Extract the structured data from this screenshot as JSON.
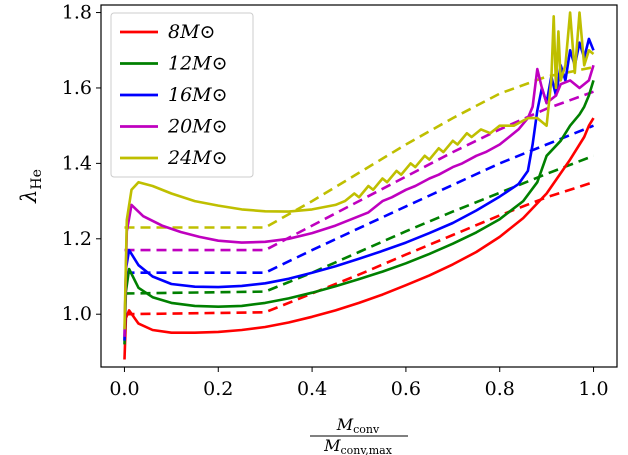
{
  "chart_data": {
    "type": "line",
    "xlabel_num": "M",
    "xlabel_num_sub": "conv",
    "xlabel_den": "M",
    "xlabel_den_sub": "conv,max",
    "ylabel": "λ",
    "ylabel_sub": "He",
    "xlim": [
      -0.05,
      1.05
    ],
    "ylim": [
      0.86,
      1.82
    ],
    "xticks": [
      "0.0",
      "0.2",
      "0.4",
      "0.6",
      "0.8",
      "1.0"
    ],
    "yticks": [
      "1.0",
      "1.2",
      "1.4",
      "1.6",
      "1.8"
    ],
    "legend_position": "upper-left",
    "series": [
      {
        "name": "8M⊙",
        "color": "#ff0000",
        "solid": [
          [
            0.0,
            0.88
          ],
          [
            0.003,
            0.99
          ],
          [
            0.01,
            1.01
          ],
          [
            0.03,
            0.975
          ],
          [
            0.06,
            0.958
          ],
          [
            0.1,
            0.951
          ],
          [
            0.15,
            0.951
          ],
          [
            0.2,
            0.953
          ],
          [
            0.25,
            0.958
          ],
          [
            0.3,
            0.966
          ],
          [
            0.35,
            0.978
          ],
          [
            0.4,
            0.993
          ],
          [
            0.45,
            1.01
          ],
          [
            0.5,
            1.03
          ],
          [
            0.55,
            1.052
          ],
          [
            0.6,
            1.077
          ],
          [
            0.65,
            1.103
          ],
          [
            0.7,
            1.132
          ],
          [
            0.75,
            1.165
          ],
          [
            0.8,
            1.205
          ],
          [
            0.85,
            1.255
          ],
          [
            0.9,
            1.32
          ],
          [
            0.95,
            1.41
          ],
          [
            0.98,
            1.47
          ],
          [
            0.99,
            1.5
          ],
          [
            1.0,
            1.52
          ]
        ],
        "dashed": [
          [
            0.0,
            1.0
          ],
          [
            0.3,
            1.005
          ],
          [
            0.4,
            1.055
          ],
          [
            0.5,
            1.105
          ],
          [
            0.6,
            1.158
          ],
          [
            0.7,
            1.21
          ],
          [
            0.8,
            1.262
          ],
          [
            0.9,
            1.31
          ],
          [
            1.0,
            1.35
          ]
        ]
      },
      {
        "name": "12M⊙",
        "color": "#008000",
        "solid": [
          [
            0.0,
            0.92
          ],
          [
            0.003,
            1.06
          ],
          [
            0.01,
            1.12
          ],
          [
            0.03,
            1.07
          ],
          [
            0.06,
            1.045
          ],
          [
            0.1,
            1.03
          ],
          [
            0.15,
            1.022
          ],
          [
            0.2,
            1.02
          ],
          [
            0.25,
            1.022
          ],
          [
            0.3,
            1.03
          ],
          [
            0.35,
            1.042
          ],
          [
            0.4,
            1.057
          ],
          [
            0.45,
            1.074
          ],
          [
            0.5,
            1.093
          ],
          [
            0.55,
            1.113
          ],
          [
            0.6,
            1.135
          ],
          [
            0.65,
            1.16
          ],
          [
            0.7,
            1.187
          ],
          [
            0.75,
            1.217
          ],
          [
            0.8,
            1.252
          ],
          [
            0.85,
            1.3
          ],
          [
            0.88,
            1.35
          ],
          [
            0.9,
            1.42
          ],
          [
            0.93,
            1.46
          ],
          [
            0.95,
            1.5
          ],
          [
            0.97,
            1.53
          ],
          [
            0.98,
            1.55
          ],
          [
            0.99,
            1.58
          ],
          [
            1.0,
            1.62
          ]
        ],
        "dashed": [
          [
            0.0,
            1.055
          ],
          [
            0.3,
            1.06
          ],
          [
            0.4,
            1.11
          ],
          [
            0.5,
            1.165
          ],
          [
            0.6,
            1.22
          ],
          [
            0.7,
            1.272
          ],
          [
            0.8,
            1.322
          ],
          [
            0.9,
            1.372
          ],
          [
            1.0,
            1.42
          ]
        ]
      },
      {
        "name": "16M⊙",
        "color": "#0000ff",
        "solid": [
          [
            0.0,
            0.93
          ],
          [
            0.003,
            1.12
          ],
          [
            0.01,
            1.17
          ],
          [
            0.03,
            1.13
          ],
          [
            0.06,
            1.1
          ],
          [
            0.1,
            1.08
          ],
          [
            0.15,
            1.073
          ],
          [
            0.2,
            1.072
          ],
          [
            0.25,
            1.075
          ],
          [
            0.3,
            1.082
          ],
          [
            0.35,
            1.094
          ],
          [
            0.4,
            1.11
          ],
          [
            0.45,
            1.127
          ],
          [
            0.5,
            1.147
          ],
          [
            0.55,
            1.168
          ],
          [
            0.6,
            1.19
          ],
          [
            0.65,
            1.215
          ],
          [
            0.7,
            1.242
          ],
          [
            0.75,
            1.275
          ],
          [
            0.8,
            1.312
          ],
          [
            0.84,
            1.345
          ],
          [
            0.86,
            1.38
          ],
          [
            0.87,
            1.45
          ],
          [
            0.88,
            1.54
          ],
          [
            0.89,
            1.6
          ],
          [
            0.9,
            1.56
          ],
          [
            0.91,
            1.63
          ],
          [
            0.92,
            1.58
          ],
          [
            0.93,
            1.66
          ],
          [
            0.94,
            1.62
          ],
          [
            0.95,
            1.7
          ],
          [
            0.96,
            1.66
          ],
          [
            0.97,
            1.72
          ],
          [
            0.98,
            1.68
          ],
          [
            0.99,
            1.73
          ],
          [
            1.0,
            1.7
          ]
        ],
        "dashed": [
          [
            0.0,
            1.11
          ],
          [
            0.3,
            1.11
          ],
          [
            0.4,
            1.17
          ],
          [
            0.5,
            1.228
          ],
          [
            0.6,
            1.286
          ],
          [
            0.7,
            1.343
          ],
          [
            0.8,
            1.4
          ],
          [
            0.9,
            1.45
          ],
          [
            1.0,
            1.5
          ]
        ]
      },
      {
        "name": "20M⊙",
        "color": "#bf00bf",
        "solid": [
          [
            0.0,
            0.94
          ],
          [
            0.005,
            1.22
          ],
          [
            0.015,
            1.29
          ],
          [
            0.04,
            1.26
          ],
          [
            0.08,
            1.235
          ],
          [
            0.12,
            1.218
          ],
          [
            0.16,
            1.205
          ],
          [
            0.2,
            1.195
          ],
          [
            0.25,
            1.19
          ],
          [
            0.3,
            1.192
          ],
          [
            0.35,
            1.2
          ],
          [
            0.4,
            1.215
          ],
          [
            0.45,
            1.235
          ],
          [
            0.5,
            1.26
          ],
          [
            0.52,
            1.27
          ],
          [
            0.55,
            1.3
          ],
          [
            0.57,
            1.31
          ],
          [
            0.6,
            1.33
          ],
          [
            0.62,
            1.34
          ],
          [
            0.65,
            1.36
          ],
          [
            0.67,
            1.37
          ],
          [
            0.7,
            1.39
          ],
          [
            0.72,
            1.4
          ],
          [
            0.75,
            1.42
          ],
          [
            0.77,
            1.43
          ],
          [
            0.8,
            1.45
          ],
          [
            0.82,
            1.47
          ],
          [
            0.84,
            1.49
          ],
          [
            0.86,
            1.52
          ],
          [
            0.87,
            1.55
          ],
          [
            0.88,
            1.65
          ],
          [
            0.89,
            1.6
          ],
          [
            0.9,
            1.56
          ],
          [
            0.92,
            1.58
          ],
          [
            0.93,
            1.61
          ],
          [
            0.95,
            1.62
          ],
          [
            0.97,
            1.6
          ],
          [
            0.99,
            1.62
          ],
          [
            1.0,
            1.66
          ]
        ],
        "dashed": [
          [
            0.0,
            1.17
          ],
          [
            0.3,
            1.17
          ],
          [
            0.4,
            1.235
          ],
          [
            0.5,
            1.3
          ],
          [
            0.6,
            1.365
          ],
          [
            0.7,
            1.43
          ],
          [
            0.8,
            1.49
          ],
          [
            0.9,
            1.545
          ],
          [
            1.0,
            1.59
          ]
        ]
      },
      {
        "name": "24M⊙",
        "color": "#bfbf00",
        "solid": [
          [
            0.0,
            0.96
          ],
          [
            0.005,
            1.25
          ],
          [
            0.015,
            1.33
          ],
          [
            0.03,
            1.35
          ],
          [
            0.06,
            1.34
          ],
          [
            0.1,
            1.32
          ],
          [
            0.15,
            1.3
          ],
          [
            0.2,
            1.288
          ],
          [
            0.25,
            1.278
          ],
          [
            0.3,
            1.273
          ],
          [
            0.35,
            1.272
          ],
          [
            0.4,
            1.278
          ],
          [
            0.45,
            1.29
          ],
          [
            0.47,
            1.3
          ],
          [
            0.49,
            1.32
          ],
          [
            0.5,
            1.31
          ],
          [
            0.52,
            1.34
          ],
          [
            0.53,
            1.33
          ],
          [
            0.55,
            1.36
          ],
          [
            0.56,
            1.35
          ],
          [
            0.58,
            1.38
          ],
          [
            0.59,
            1.37
          ],
          [
            0.61,
            1.4
          ],
          [
            0.62,
            1.39
          ],
          [
            0.64,
            1.42
          ],
          [
            0.65,
            1.41
          ],
          [
            0.67,
            1.44
          ],
          [
            0.68,
            1.43
          ],
          [
            0.7,
            1.46
          ],
          [
            0.71,
            1.45
          ],
          [
            0.73,
            1.48
          ],
          [
            0.74,
            1.47
          ],
          [
            0.76,
            1.49
          ],
          [
            0.78,
            1.48
          ],
          [
            0.8,
            1.5
          ],
          [
            0.83,
            1.5
          ],
          [
            0.86,
            1.52
          ],
          [
            0.88,
            1.52
          ],
          [
            0.9,
            1.5
          ],
          [
            0.91,
            1.62
          ],
          [
            0.915,
            1.79
          ],
          [
            0.92,
            1.6
          ],
          [
            0.925,
            1.75
          ],
          [
            0.93,
            1.62
          ],
          [
            0.94,
            1.66
          ],
          [
            0.95,
            1.8
          ],
          [
            0.96,
            1.64
          ],
          [
            0.97,
            1.8
          ],
          [
            0.98,
            1.66
          ],
          [
            0.99,
            1.7
          ],
          [
            1.0,
            1.69
          ]
        ],
        "dashed": [
          [
            0.0,
            1.23
          ],
          [
            0.3,
            1.23
          ],
          [
            0.4,
            1.3
          ],
          [
            0.5,
            1.375
          ],
          [
            0.6,
            1.45
          ],
          [
            0.7,
            1.52
          ],
          [
            0.8,
            1.585
          ],
          [
            0.9,
            1.63
          ],
          [
            1.0,
            1.655
          ]
        ]
      }
    ]
  }
}
